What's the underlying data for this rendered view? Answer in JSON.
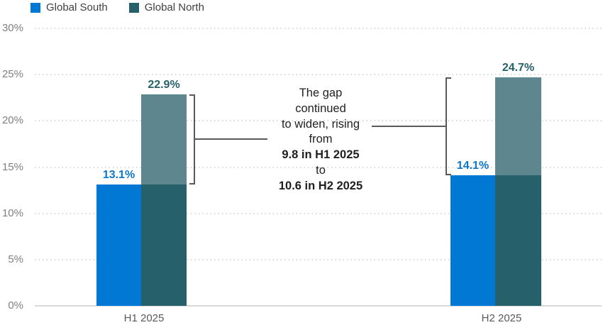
{
  "legend": {
    "items": [
      {
        "label": "Global South",
        "color": "#0078d4"
      },
      {
        "label": "Global North",
        "color": "#26606a"
      }
    ]
  },
  "chart_data": {
    "type": "bar",
    "title": "",
    "xlabel": "",
    "ylabel": "",
    "categories": [
      "H1 2025",
      "H2 2025"
    ],
    "series": [
      {
        "name": "Global South",
        "values": [
          13.1,
          14.1
        ],
        "labels": [
          "13.1%",
          "14.1%"
        ],
        "color": "#0078d4",
        "label_color": "#0c78c8"
      },
      {
        "name": "Global North",
        "values": [
          22.9,
          24.7
        ],
        "labels": [
          "22.9%",
          "24.7%"
        ],
        "color": "#26606a",
        "gap_color": "#5d868e",
        "label_color": "#26606a"
      }
    ],
    "ylim": [
      0,
      30
    ],
    "yticks": [
      0,
      5,
      10,
      15,
      20,
      25,
      30
    ],
    "ytick_labels": [
      "0%",
      "5%",
      "10%",
      "15%",
      "20%",
      "25%",
      "30%"
    ],
    "grid": "horizontal-dotted",
    "legend_position": "top-left",
    "annotation": {
      "lines": [
        {
          "text": "The gap",
          "bold": false
        },
        {
          "text": "continued",
          "bold": false
        },
        {
          "text": "to widen, rising",
          "bold": false
        },
        {
          "text": "from",
          "bold": false
        },
        {
          "text": "9.8 in H1 2025",
          "bold": true
        },
        {
          "text": "to",
          "bold": false
        },
        {
          "text": "10.6 in H2 2025",
          "bold": true
        }
      ],
      "gap_h1": 9.8,
      "gap_h2": 10.6
    }
  },
  "colors": {
    "gridline": "#d9d9d9",
    "axis_text": "#7f7f7f",
    "xtick_text": "#595959",
    "bracket": "#595959",
    "annotation_text": "#1f1f1f"
  }
}
